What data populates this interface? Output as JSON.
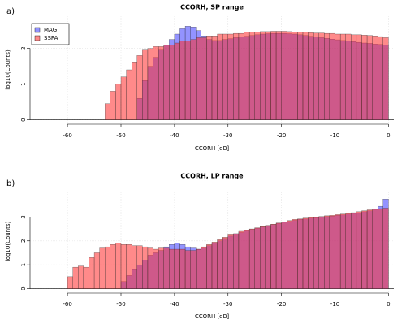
{
  "chart_data": [
    {
      "type": "histogram",
      "label": "a)",
      "title": "CCORH, SP range",
      "xlabel": "CCORH [dB]",
      "ylabel": "log10(Counts)",
      "bins": [
        -53,
        -52,
        -51,
        -50,
        -49,
        -48,
        -47,
        -46,
        -45,
        -44,
        -43,
        -42,
        -41,
        -40,
        -39,
        -38,
        -37,
        -36,
        -35,
        -34,
        -33,
        -32,
        -31,
        -30,
        -29,
        -28,
        -27,
        -26,
        -25,
        -24,
        -23,
        -22,
        -21,
        -20,
        -19,
        -18,
        -17,
        -16,
        -15,
        -14,
        -13,
        -12,
        -11,
        -10,
        -9,
        -8,
        -7,
        -6,
        -5,
        -4,
        -3,
        -2,
        -1,
        0
      ],
      "series": [
        {
          "name": "MAG",
          "color": "#3a3aff",
          "values": [
            0,
            0,
            0,
            0,
            0,
            0,
            0.6,
            1.1,
            1.5,
            1.75,
            1.95,
            2.1,
            2.25,
            2.4,
            2.55,
            2.62,
            2.6,
            2.5,
            2.35,
            2.25,
            2.22,
            2.22,
            2.25,
            2.27,
            2.3,
            2.32,
            2.34,
            2.36,
            2.38,
            2.4,
            2.41,
            2.42,
            2.42,
            2.42,
            2.41,
            2.4,
            2.38,
            2.36,
            2.34,
            2.32,
            2.3,
            2.28,
            2.26,
            2.24,
            2.22,
            2.2,
            2.19,
            2.17,
            2.15,
            2.14,
            2.12,
            2.11,
            2.1
          ]
        },
        {
          "name": "SSPA",
          "color": "#ff2a2a",
          "values": [
            0.45,
            0.8,
            1.0,
            1.2,
            1.4,
            1.6,
            1.8,
            1.95,
            2.0,
            2.05,
            2.05,
            2.1,
            2.1,
            2.15,
            2.2,
            2.2,
            2.25,
            2.3,
            2.3,
            2.35,
            2.35,
            2.4,
            2.4,
            2.4,
            2.42,
            2.42,
            2.45,
            2.45,
            2.45,
            2.47,
            2.47,
            2.48,
            2.48,
            2.48,
            2.47,
            2.46,
            2.45,
            2.45,
            2.44,
            2.43,
            2.43,
            2.42,
            2.42,
            2.4,
            2.4,
            2.4,
            2.38,
            2.38,
            2.37,
            2.36,
            2.35,
            2.33,
            2.3
          ]
        }
      ],
      "xlim": [
        -67,
        1
      ],
      "ylim": [
        -0.1,
        2.9
      ],
      "xticks": [
        -60,
        -50,
        -40,
        -30,
        -20,
        -10,
        0
      ],
      "yticks": [
        0,
        1,
        2
      ],
      "grid": true,
      "legend": "topleft"
    },
    {
      "type": "histogram",
      "label": "b)",
      "title": "CCORH, LP range",
      "xlabel": "CCORH [dB]",
      "ylabel": "log10(Counts)",
      "bins": [
        -61,
        -60,
        -59,
        -58,
        -57,
        -56,
        -55,
        -54,
        -53,
        -52,
        -51,
        -50,
        -49,
        -48,
        -47,
        -46,
        -45,
        -44,
        -43,
        -42,
        -41,
        -40,
        -39,
        -38,
        -37,
        -36,
        -35,
        -34,
        -33,
        -32,
        -31,
        -30,
        -29,
        -28,
        -27,
        -26,
        -25,
        -24,
        -23,
        -22,
        -21,
        -20,
        -19,
        -18,
        -17,
        -16,
        -15,
        -14,
        -13,
        -12,
        -11,
        -10,
        -9,
        -8,
        -7,
        -6,
        -5,
        -4,
        -3,
        -2,
        -1,
        0
      ],
      "series": [
        {
          "color": "#3a3aff",
          "values": [
            0,
            0,
            0,
            0,
            0,
            0,
            0,
            0,
            0,
            0,
            0,
            0.3,
            0.55,
            0.8,
            1.0,
            1.2,
            1.4,
            1.5,
            1.6,
            1.75,
            1.85,
            1.9,
            1.85,
            1.75,
            1.7,
            1.65,
            1.7,
            1.8,
            1.9,
            2.0,
            2.1,
            2.2,
            2.28,
            2.35,
            2.42,
            2.48,
            2.53,
            2.58,
            2.63,
            2.68,
            2.73,
            2.78,
            2.82,
            2.86,
            2.9,
            2.92,
            2.95,
            2.97,
            3.0,
            3.02,
            3.04,
            3.07,
            3.09,
            3.12,
            3.15,
            3.18,
            3.22,
            3.26,
            3.32,
            3.45,
            3.75
          ]
        },
        {
          "color": "#ff2a2a",
          "values": [
            0,
            0.5,
            0.9,
            0.95,
            0.9,
            1.3,
            1.5,
            1.7,
            1.75,
            1.85,
            1.9,
            1.85,
            1.85,
            1.8,
            1.8,
            1.75,
            1.7,
            1.65,
            1.7,
            1.7,
            1.65,
            1.65,
            1.65,
            1.6,
            1.6,
            1.65,
            1.75,
            1.85,
            1.95,
            2.05,
            2.15,
            2.25,
            2.3,
            2.4,
            2.45,
            2.5,
            2.55,
            2.6,
            2.65,
            2.7,
            2.75,
            2.8,
            2.85,
            2.9,
            2.92,
            2.95,
            2.98,
            3.0,
            3.02,
            3.05,
            3.07,
            3.1,
            3.12,
            3.15,
            3.18,
            3.22,
            3.26,
            3.3,
            3.33,
            3.35,
            3.37
          ]
        }
      ],
      "xlim": [
        -67,
        1
      ],
      "ylim": [
        -0.15,
        4.1
      ],
      "xticks": [
        -60,
        -50,
        -40,
        -30,
        -20,
        -10,
        0
      ],
      "yticks": [
        0,
        1,
        2,
        3
      ],
      "grid": true
    }
  ]
}
